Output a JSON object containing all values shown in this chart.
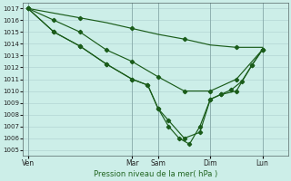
{
  "title": "Pression niveau de la mer( hPa )",
  "background_color": "#cceee8",
  "grid_color": "#aacccc",
  "line_color": "#1a5c1a",
  "ylim": [
    1004.5,
    1017.5
  ],
  "yticks": [
    1005,
    1006,
    1007,
    1008,
    1009,
    1010,
    1011,
    1012,
    1013,
    1014,
    1015,
    1016,
    1017
  ],
  "day_labels": [
    "Ven",
    "Mar",
    "Sam",
    "Dim",
    "Lun"
  ],
  "day_x": [
    0,
    10,
    12.5,
    17.5,
    22.5
  ],
  "xlim": [
    -0.5,
    25
  ],
  "series_top": {
    "x": [
      0,
      2.5,
      5,
      7.5,
      10,
      12.5,
      15,
      17.5,
      20,
      22.5
    ],
    "y": [
      1017,
      1016.6,
      1016.2,
      1015.8,
      1015.3,
      1014.8,
      1014.4,
      1013.9,
      1013.7,
      1013.7
    ]
  },
  "series_mid": {
    "x": [
      0,
      2.5,
      5,
      7.5,
      10,
      12.5,
      15,
      17.5,
      20,
      22.5
    ],
    "y": [
      1017,
      1016.0,
      1015.0,
      1013.5,
      1012.5,
      1011.2,
      1010.0,
      1010.0,
      1011.0,
      1013.5
    ]
  },
  "series_low1": {
    "x": [
      0,
      2.5,
      5,
      7.5,
      10,
      11.5,
      12.5,
      13.5,
      15,
      16.5,
      17.5,
      18.5,
      20,
      21.5,
      22.5
    ],
    "y": [
      1017,
      1015.0,
      1013.8,
      1012.3,
      1011.0,
      1010.5,
      1008.5,
      1007.5,
      1006.0,
      1006.5,
      1009.3,
      1009.7,
      1010.0,
      1012.2,
      1013.5
    ]
  },
  "series_low2": {
    "x": [
      0,
      2.5,
      5,
      7.5,
      10,
      11.5,
      12.5,
      13.5,
      14.5,
      15.5,
      16.5,
      17.5,
      18.5,
      19.5,
      20.5,
      21.5,
      22.5
    ],
    "y": [
      1017,
      1015.0,
      1013.8,
      1012.3,
      1011.0,
      1010.5,
      1008.5,
      1007.0,
      1006.0,
      1005.5,
      1007.0,
      1009.3,
      1009.7,
      1010.1,
      1010.8,
      1012.2,
      1013.5
    ]
  }
}
